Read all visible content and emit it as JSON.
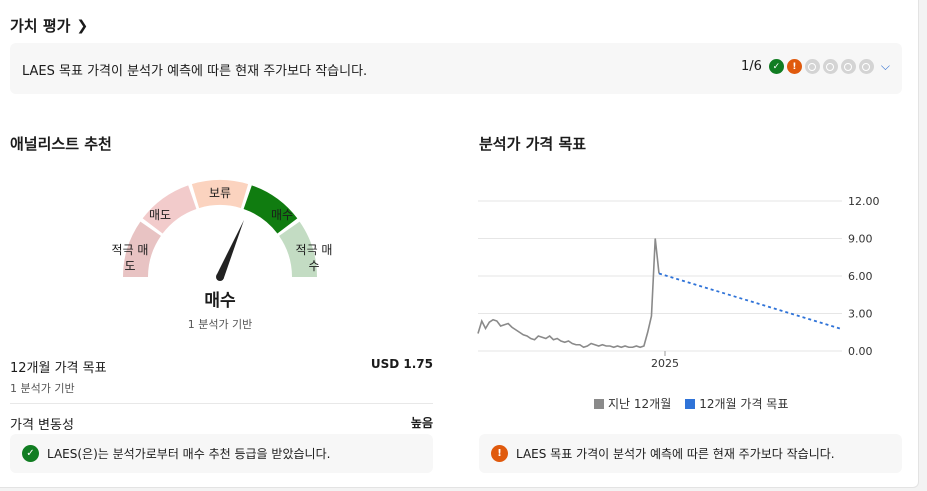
{
  "header": {
    "title": "가치 평가",
    "chevron": "chevron-right-icon"
  },
  "banner": {
    "text": "LAES 목표 가격이 분석가 예측에 따른 현재 주가보다 작습니다.",
    "count": "1/6",
    "icons": [
      "check-star-icon",
      "warning-icon",
      "neutral-icon",
      "neutral-icon",
      "neutral-icon",
      "neutral-icon"
    ],
    "expand_icon": "chevron-down-icon"
  },
  "analyst": {
    "title": "애널리스트 추천",
    "gauge": {
      "labels": [
        "적극 매\n도",
        "매도",
        "보류",
        "매수",
        "적극 매\n수"
      ],
      "colors": [
        "#e8c3c3",
        "#f2cbcb",
        "#fbd3bf",
        "#107c10",
        "#c3dcc3"
      ],
      "active_index": 3,
      "value": "매수",
      "sub": "1 분석가 기반"
    },
    "target_label": "12개월 가격 목표",
    "target_value": "USD 1.75",
    "target_sub": "1 분석가 기반",
    "volatility_label": "가격 변동성",
    "volatility_value": "높음",
    "note": "LAES(은)는 분석가로부터 매수 추천 등급을 받았습니다."
  },
  "target_chart": {
    "title": "분석가 가격 목표",
    "note": "LAES 목표 가격이 분석가 예측에 따른 현재 주가보다 작습니다."
  },
  "chart_data": {
    "type": "line",
    "x_tick_labels": [
      "2025"
    ],
    "ylim": [
      0,
      12
    ],
    "y_ticks": [
      "12.00",
      "9.00",
      "6.00",
      "3.00",
      "0.00"
    ],
    "series": [
      {
        "name": "지난 12개월",
        "color": "#8a8a8a",
        "values": [
          1.4,
          2.4,
          1.8,
          2.3,
          2.5,
          2.4,
          2.0,
          2.1,
          2.2,
          1.9,
          1.7,
          1.5,
          1.3,
          1.2,
          1.0,
          0.9,
          1.2,
          1.1,
          1.0,
          1.2,
          0.9,
          1.0,
          0.8,
          0.7,
          0.8,
          0.6,
          0.5,
          0.5,
          0.3,
          0.4,
          0.6,
          0.5,
          0.4,
          0.5,
          0.4,
          0.4,
          0.3,
          0.4,
          0.3,
          0.4,
          0.3,
          0.3,
          0.4,
          0.3,
          0.4,
          1.5,
          2.8,
          9.0,
          6.2
        ]
      },
      {
        "name": "12개월 가격 목표",
        "color": "#2f73d8",
        "dashed": true,
        "values": [
          6.2,
          1.75
        ]
      }
    ],
    "grid": true,
    "legend": "bottom"
  }
}
